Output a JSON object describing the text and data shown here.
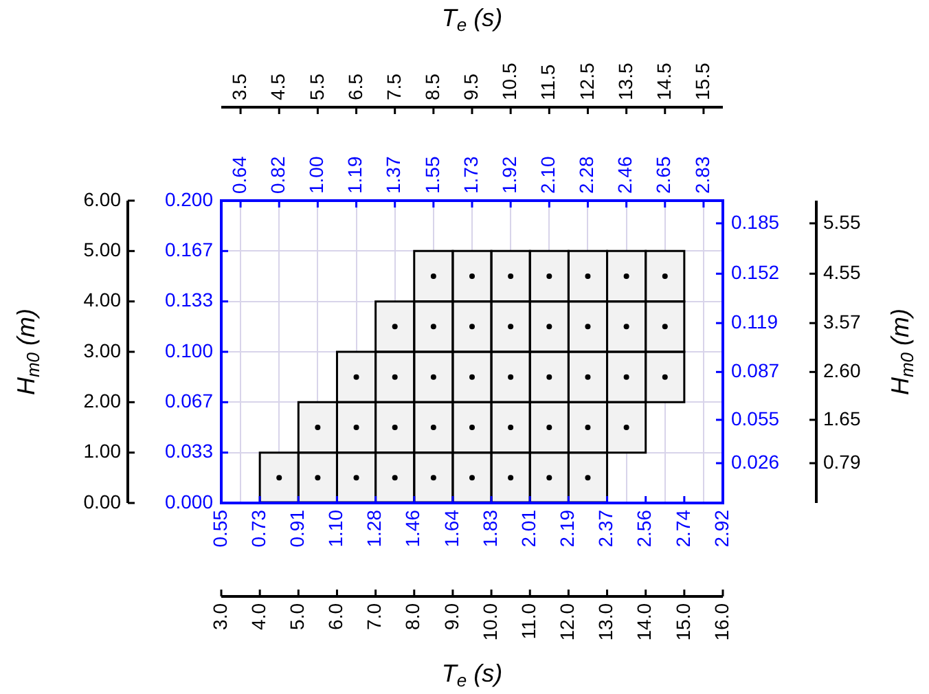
{
  "chart_data": {
    "type": "bar",
    "xlabel": "T$_{e}$ (s)",
    "x2label": "T$_{e}$ (s)",
    "ylabel": "H$_{m0}$ (m)",
    "y2label": "H$_{m0}$ (m)",
    "x": [
      4.5,
      5.5,
      6.5,
      7.5,
      8.5,
      9.5,
      10.5,
      11.5,
      12.5,
      13.5,
      14.5
    ],
    "series": [
      {
        "color": "#f2f2f2",
        "values": [
          1,
          1,
          1,
          1,
          1,
          1,
          1,
          1,
          1,
          null,
          null
        ],
        "base": [
          0,
          0,
          0,
          0,
          0,
          0,
          0,
          0,
          0,
          null,
          null
        ]
      },
      {
        "color": "#f2f2f2",
        "values": [
          null,
          1,
          1,
          1,
          1,
          1,
          1,
          1,
          1,
          1,
          null
        ],
        "base": [
          null,
          1,
          1,
          1,
          1,
          1,
          1,
          1,
          1,
          1,
          null
        ]
      },
      {
        "color": "#f2f2f2",
        "values": [
          null,
          null,
          1,
          1,
          1,
          1,
          1,
          1,
          1,
          1,
          1
        ],
        "base": [
          null,
          null,
          2,
          2,
          2,
          2,
          2,
          2,
          2,
          2,
          2
        ]
      },
      {
        "color": "#f2f2f2",
        "values": [
          null,
          null,
          null,
          1,
          1,
          1,
          1,
          1,
          1,
          1,
          1
        ],
        "base": [
          null,
          null,
          null,
          3,
          3,
          3,
          3,
          3,
          3,
          3,
          3
        ]
      },
      {
        "color": "#f2f2f2",
        "values": [
          null,
          null,
          null,
          null,
          1,
          1,
          1,
          1,
          1,
          1,
          1
        ],
        "base": [
          null,
          null,
          null,
          null,
          4,
          4,
          4,
          4,
          4,
          4,
          4
        ]
      },
      {
        "type": "scatter",
        "color": "#000000",
        "marker": "circle",
        "x": [
          4.5,
          5.5,
          6.5,
          7.5,
          8.5,
          9.5,
          10.5,
          11.5,
          12.5,
          5.5,
          6.5,
          7.5,
          8.5,
          9.5,
          10.5,
          11.5,
          12.5,
          13.5,
          6.5,
          7.5,
          8.5,
          9.5,
          10.5,
          11.5,
          12.5,
          13.5,
          14.5,
          7.5,
          8.5,
          9.5,
          10.5,
          11.5,
          12.5,
          13.5,
          14.5,
          8.5,
          9.5,
          10.5,
          11.5,
          12.5,
          13.5,
          14.5
        ],
        "values": [
          0.5,
          0.5,
          0.5,
          0.5,
          0.5,
          0.5,
          0.5,
          0.5,
          0.5,
          1.5,
          1.5,
          1.5,
          1.5,
          1.5,
          1.5,
          1.5,
          1.5,
          1.5,
          2.5,
          2.5,
          2.5,
          2.5,
          2.5,
          2.5,
          2.5,
          2.5,
          2.5,
          3.5,
          3.5,
          3.5,
          3.5,
          3.5,
          3.5,
          3.5,
          3.5,
          4.5,
          4.5,
          4.5,
          4.5,
          4.5,
          4.5,
          4.5
        ]
      }
    ],
    "xlim": [
      3,
      16
    ],
    "xticks": [
      {
        "value": 3,
        "label": "3.0"
      },
      {
        "value": 4,
        "label": "4.0"
      },
      {
        "value": 5,
        "label": "5.0"
      },
      {
        "value": 6,
        "label": "6.0"
      },
      {
        "value": 7,
        "label": "7.0"
      },
      {
        "value": 8,
        "label": "8.0"
      },
      {
        "value": 9,
        "label": "9.0"
      },
      {
        "value": 10,
        "label": "10.0"
      },
      {
        "value": 11,
        "label": "11.0"
      },
      {
        "value": 12,
        "label": "12.0"
      },
      {
        "value": 13,
        "label": "13.0"
      },
      {
        "value": 14,
        "label": "14.0"
      },
      {
        "value": 15,
        "label": "15.0"
      },
      {
        "value": 16,
        "label": "16.0"
      }
    ],
    "x2lim": [
      3,
      16
    ],
    "x2ticks": [
      3.5,
      4.5,
      5.5,
      6.5,
      7.5,
      8.5,
      9.5,
      10.5,
      11.5,
      12.5,
      13.5,
      14.5,
      15.5
    ],
    "ylim": [
      0,
      6
    ],
    "yticks": [
      {
        "value": 0,
        "label": "0.00"
      },
      {
        "value": 1,
        "label": "1.00"
      },
      {
        "value": 2,
        "label": "2.00"
      },
      {
        "value": 3,
        "label": "3.00"
      },
      {
        "value": 4,
        "label": "4.00"
      },
      {
        "value": 5,
        "label": "5.00"
      },
      {
        "value": 6,
        "label": "6.00"
      }
    ],
    "y2lim": [
      0,
      6
    ],
    "y2ticks": [
      0.79,
      1.65,
      {
        "value": 2.6,
        "label": "2.60"
      },
      3.57,
      4.55,
      5.55
    ],
    "annotations": [
      "0.55",
      "0.73",
      "0.91",
      "1.10",
      "1.28",
      "1.46",
      "1.64",
      "1.83",
      "2.01",
      "2.19",
      "2.37",
      "2.56",
      "2.74",
      "2.92",
      "0.64",
      "0.82",
      "1.00",
      "1.19",
      "1.37",
      "1.55",
      "1.73",
      "1.92",
      "2.10",
      "2.28",
      "2.46",
      "2.65",
      "2.83",
      "0.000",
      "0.033",
      "0.067",
      "0.100",
      "0.133",
      "0.167",
      "0.200",
      "0.026",
      "0.055",
      "0.087",
      "0.119",
      "0.152",
      "0.185"
    ],
    "grid": true,
    "legend": false
  }
}
